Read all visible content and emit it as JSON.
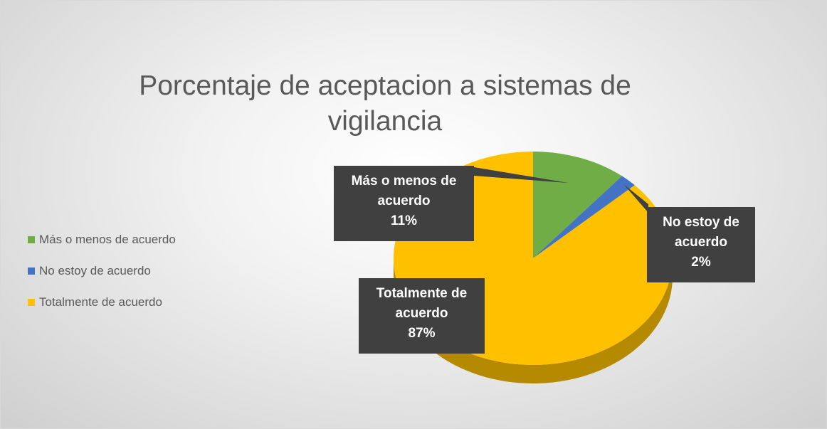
{
  "chart_data": {
    "type": "pie",
    "title": "Porcentaje de aceptacion a sistemas de vigilancia",
    "categories": [
      "Más o menos de acuerdo",
      "No estoy de acuerdo",
      "Totalmente de acuerdo"
    ],
    "values": [
      11,
      2,
      87
    ],
    "value_labels": [
      "11%",
      "2%",
      "87%"
    ],
    "colors": [
      "#70ad47",
      "#4472c4",
      "#ffc000"
    ],
    "legend": "left"
  }
}
